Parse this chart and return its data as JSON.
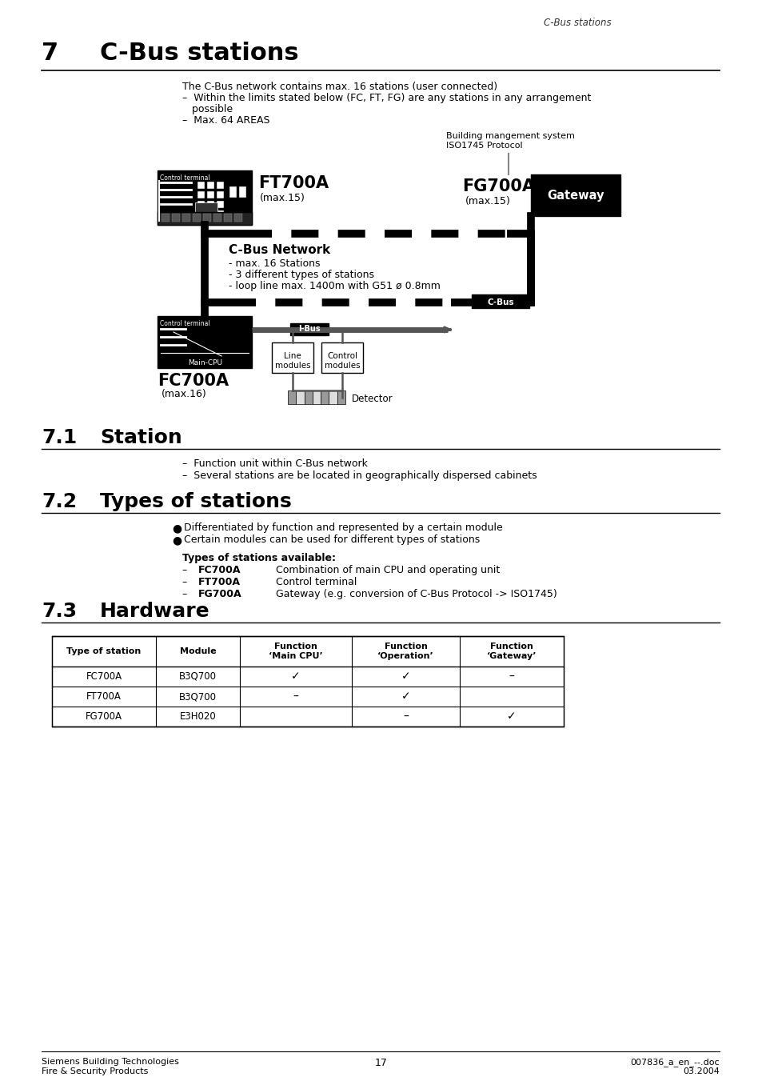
{
  "page_header_right": "C-Bus stations",
  "section7_num": "7",
  "section7_title": "C-Bus stations",
  "section7_body_line1": "The C-Bus network contains max. 16 stations (user connected)",
  "section7_body_line2": "–  Within the limits stated below (FC, FT, FG) are any stations in any arrangement",
  "section7_body_line3": "   possible",
  "section7_body_line4": "–  Max. 64 AREAS",
  "diagram_label_bms1": "Building mangement system",
  "diagram_label_bms2": "ISO1745 Protocol",
  "diagram_ft700a_label": "FT700A",
  "diagram_ft700a_sub": "(max.15)",
  "diagram_fg700a_label": "FG700A",
  "diagram_fg700a_sub": "(max.15)",
  "diagram_gateway_label": "Gateway",
  "diagram_cbus_network_title": "C-Bus Network",
  "diagram_cbus_network_items": [
    "- max. 16 Stations",
    "- 3 different types of stations",
    "- loop line max. 1400m with G51 ø 0.8mm"
  ],
  "diagram_cbus_label": "C-Bus",
  "diagram_ibus_label": "I-Bus",
  "diagram_control_terminal_top": "Control terminal",
  "diagram_control_terminal_bottom": "Control terminal",
  "diagram_main_cpu": "Main-CPU",
  "diagram_fc700a_label": "FC700A",
  "diagram_fc700a_sub": "(max.16)",
  "diagram_line_modules": "Line\nmodules",
  "diagram_control_modules": "Control\nmodules",
  "diagram_detector": "Detector",
  "section71_num": "7.1",
  "section71_title": "Station",
  "section71_body": [
    "–  Function unit within C-Bus network",
    "–  Several stations are be located in geographically dispersed cabinets"
  ],
  "section72_num": "7.2",
  "section72_title": "Types of stations",
  "section72_bullets": [
    "Differentiated by function and represented by a certain module",
    "Certain modules can be used for different types of stations"
  ],
  "section72_types_title": "Types of stations available:",
  "section72_types": [
    [
      "FC700A",
      "Combination of main CPU and operating unit"
    ],
    [
      "FT700A",
      "Control terminal"
    ],
    [
      "FG700A",
      "Gateway (e.g. conversion of C-Bus Protocol -> ISO1745)"
    ]
  ],
  "section73_num": "7.3",
  "section73_title": "Hardware",
  "table_headers": [
    "Type of station",
    "Module",
    "Function\n‘Main CPU’",
    "Function\n‘Operation’",
    "Function\n‘Gateway’"
  ],
  "table_rows": [
    [
      "FC700A",
      "B3Q700",
      "✓",
      "✓",
      "–"
    ],
    [
      "FT700A",
      "B3Q700",
      "–",
      "✓",
      ""
    ],
    [
      "FG700A",
      "E3H020",
      "",
      "–",
      "✓"
    ]
  ],
  "footer_left1": "Siemens Building Technologies",
  "footer_left2": "Fire & Security Products",
  "footer_right1": "007836_a_en_--.doc",
  "footer_right2": "03.2004",
  "footer_page": "17",
  "bg_color": "#ffffff"
}
